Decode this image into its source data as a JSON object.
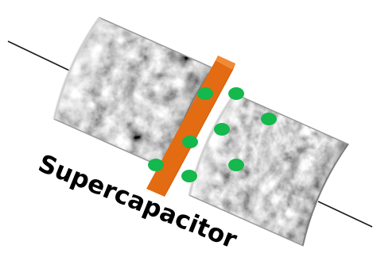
{
  "title": "Supercapacitor",
  "colors": {
    "wire": "#1a1a1a",
    "separator": "#e36b12",
    "separator_edge": "#c65a0c",
    "ion": "#14b84c",
    "electrode_dark": "#2a2a2a",
    "electrode_mid": "#707070",
    "electrode_light": "#b8b8b8"
  },
  "icons": {
    "left_electrode": "porous-electrode",
    "right_electrode": "porous-electrode",
    "separator": "separator-membrane",
    "ions": "ion-dot"
  }
}
